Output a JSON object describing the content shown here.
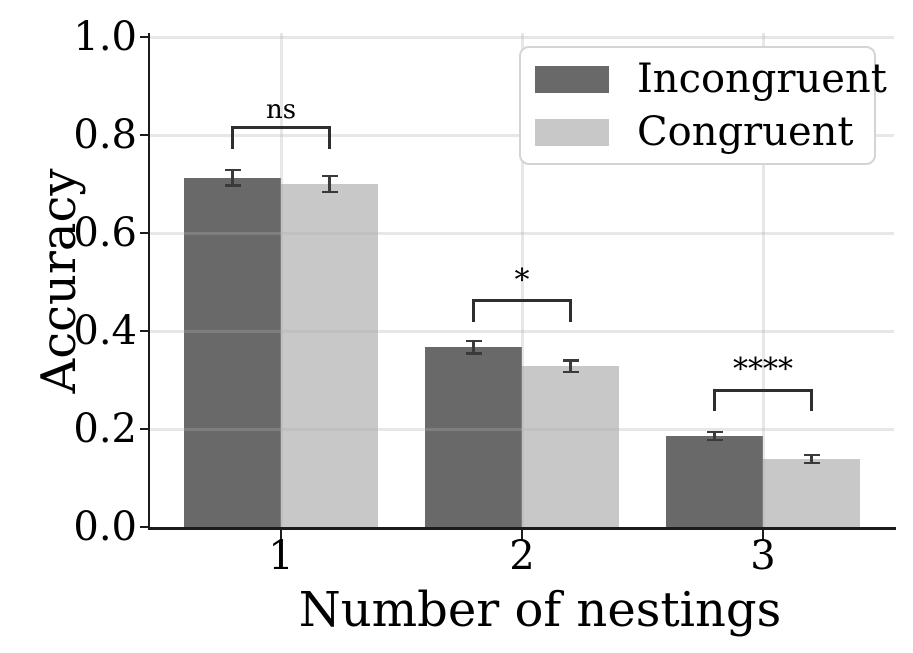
{
  "figure": {
    "background": "#ffffff",
    "text_color": "#000000",
    "spine_color": "#1c1c1c",
    "grid_color": "rgba(175,175,175,0.30)",
    "error_bar_color": "#3a3a3a",
    "bracket_color": "#2e2e2e",
    "legend_border_color": "#d4d4d4"
  },
  "chart_data": {
    "type": "bar",
    "title": "",
    "xlabel": "Number of nestings",
    "ylabel": "Accuracy",
    "categories": [
      "1",
      "2",
      "3"
    ],
    "series": [
      {
        "name": "Incongruent",
        "color": "#696969",
        "values": [
          0.713,
          0.367,
          0.186
        ],
        "errors": [
          0.016,
          0.013,
          0.008
        ]
      },
      {
        "name": "Congruent",
        "color": "#c8c8c8",
        "values": [
          0.7,
          0.328,
          0.139
        ],
        "errors": [
          0.016,
          0.012,
          0.008
        ]
      }
    ],
    "ylim": [
      0,
      1.0
    ],
    "yticks": [
      0,
      0.2,
      0.4,
      0.6,
      0.8,
      1.0
    ],
    "ytick_labels": [
      "0.0",
      "0.2",
      "0.4",
      "0.6",
      "0.8",
      "1.0"
    ],
    "grid": true,
    "legend_position": "upper right",
    "significance_brackets": [
      {
        "group_index": 0,
        "label": "ns",
        "y": 0.815
      },
      {
        "group_index": 1,
        "label": "*",
        "y": 0.462
      },
      {
        "group_index": 2,
        "label": "****",
        "y": 0.279
      }
    ]
  }
}
